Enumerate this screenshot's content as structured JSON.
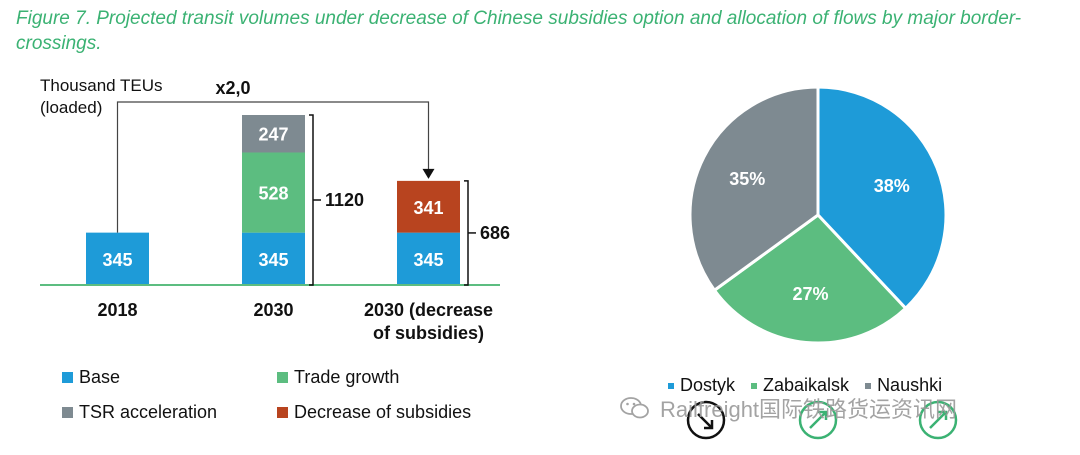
{
  "title": "Figure 7. Projected transit volumes under decrease of Chinese subsidies option and allocation of flows by major border-crossings.",
  "colors": {
    "base": "#1e9bd8",
    "trade_growth": "#5cbd80",
    "tsr_acceleration": "#7e8a91",
    "decrease_of_subsidies": "#b8441f",
    "dostyk": "#1e9bd8",
    "zabaikalsk": "#5cbd80",
    "naushki": "#7e8a91",
    "title": "#3bb273"
  },
  "chart_data": [
    {
      "type": "bar",
      "stacked": true,
      "ylabel": "Thousand TEUs (loaded)",
      "ylabel_lines": [
        "Thousand TEUs",
        "(loaded)"
      ],
      "categories": [
        "2018",
        "2030",
        "2030 (decrease of subsidies)"
      ],
      "category_lines": [
        [
          "2018"
        ],
        [
          "2030"
        ],
        [
          "2030 (decrease",
          "of subsidies)"
        ]
      ],
      "series": [
        {
          "name": "Base",
          "values": [
            345,
            345,
            345
          ]
        },
        {
          "name": "Trade growth",
          "values": [
            0,
            528,
            0
          ]
        },
        {
          "name": "TSR acceleration",
          "values": [
            0,
            247,
            0
          ]
        },
        {
          "name": "Decrease of subsidies",
          "values": [
            0,
            0,
            341
          ]
        }
      ],
      "totals": [
        {
          "category": "2030",
          "value": 1120
        },
        {
          "category": "2030 (decrease of subsidies)",
          "value": 686
        }
      ],
      "annotation": "x2,0",
      "ylim": [
        0,
        1200
      ],
      "legend": [
        [
          "Base",
          "Trade growth"
        ],
        [
          "TSR acceleration",
          "Decrease of subsidies"
        ]
      ]
    },
    {
      "type": "pie",
      "slices": [
        {
          "name": "Dostyk",
          "value": 38,
          "label": "38%"
        },
        {
          "name": "Zabaikalsk",
          "value": 27,
          "label": "27%"
        },
        {
          "name": "Naushki",
          "value": 35,
          "label": "35%"
        }
      ],
      "legend": [
        "Dostyk",
        "Zabaikalsk",
        "Naushki"
      ]
    }
  ],
  "watermark": "Railfreight国际铁路货运资讯网"
}
